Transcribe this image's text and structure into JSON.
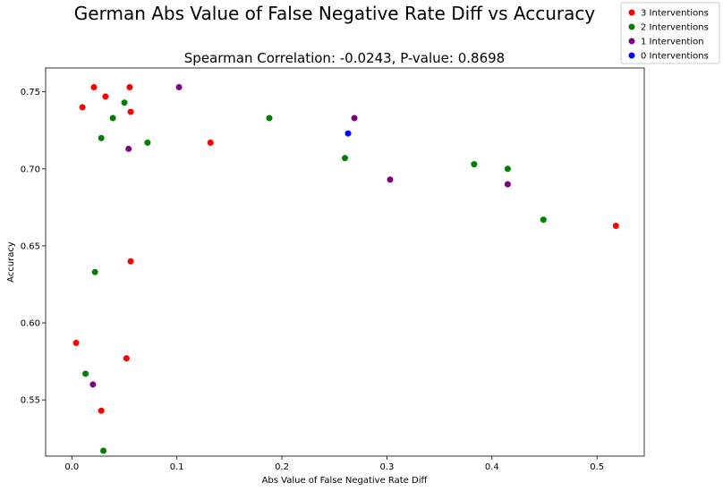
{
  "chart_data": {
    "type": "scatter",
    "title": "German Abs Value of False Negative Rate Diff vs Accuracy",
    "subtitle": "Spearman Correlation: -0.0243, P-value: 0.8698",
    "xlabel": "Abs Value of False Negative Rate Diff",
    "ylabel": "Accuracy",
    "xlim": [
      -0.025,
      0.545
    ],
    "ylim": [
      0.5135,
      0.7655
    ],
    "x_ticks": [
      0.0,
      0.1,
      0.2,
      0.3,
      0.4,
      0.5
    ],
    "x_tick_labels": [
      "0.0",
      "0.1",
      "0.2",
      "0.3",
      "0.4",
      "0.5"
    ],
    "y_ticks": [
      0.55,
      0.6,
      0.65,
      0.7,
      0.75
    ],
    "y_tick_labels": [
      "0.55",
      "0.60",
      "0.65",
      "0.70",
      "0.75"
    ],
    "grid": false,
    "legend_position": "top-right",
    "series": [
      {
        "name": "3 Interventions",
        "color": "#ff0000",
        "points": [
          {
            "x": 0.004,
            "y": 0.587
          },
          {
            "x": 0.01,
            "y": 0.74
          },
          {
            "x": 0.021,
            "y": 0.753
          },
          {
            "x": 0.028,
            "y": 0.543
          },
          {
            "x": 0.032,
            "y": 0.747
          },
          {
            "x": 0.052,
            "y": 0.577
          },
          {
            "x": 0.055,
            "y": 0.753
          },
          {
            "x": 0.056,
            "y": 0.737
          },
          {
            "x": 0.056,
            "y": 0.64
          },
          {
            "x": 0.132,
            "y": 0.717
          },
          {
            "x": 0.518,
            "y": 0.663
          }
        ]
      },
      {
        "name": "2 Interventions",
        "color": "#008000",
        "points": [
          {
            "x": 0.013,
            "y": 0.567
          },
          {
            "x": 0.022,
            "y": 0.633
          },
          {
            "x": 0.028,
            "y": 0.72
          },
          {
            "x": 0.03,
            "y": 0.517
          },
          {
            "x": 0.039,
            "y": 0.733
          },
          {
            "x": 0.05,
            "y": 0.743
          },
          {
            "x": 0.072,
            "y": 0.717
          },
          {
            "x": 0.188,
            "y": 0.733
          },
          {
            "x": 0.26,
            "y": 0.707
          },
          {
            "x": 0.383,
            "y": 0.703
          },
          {
            "x": 0.415,
            "y": 0.7
          },
          {
            "x": 0.449,
            "y": 0.667
          }
        ]
      },
      {
        "name": "1 Intervention",
        "color": "#800080",
        "points": [
          {
            "x": 0.02,
            "y": 0.56
          },
          {
            "x": 0.054,
            "y": 0.713
          },
          {
            "x": 0.102,
            "y": 0.753
          },
          {
            "x": 0.269,
            "y": 0.733
          },
          {
            "x": 0.303,
            "y": 0.693
          },
          {
            "x": 0.415,
            "y": 0.69
          }
        ]
      },
      {
        "name": "0 Interventions",
        "color": "#0000ff",
        "points": [
          {
            "x": 0.263,
            "y": 0.723
          }
        ]
      }
    ]
  }
}
